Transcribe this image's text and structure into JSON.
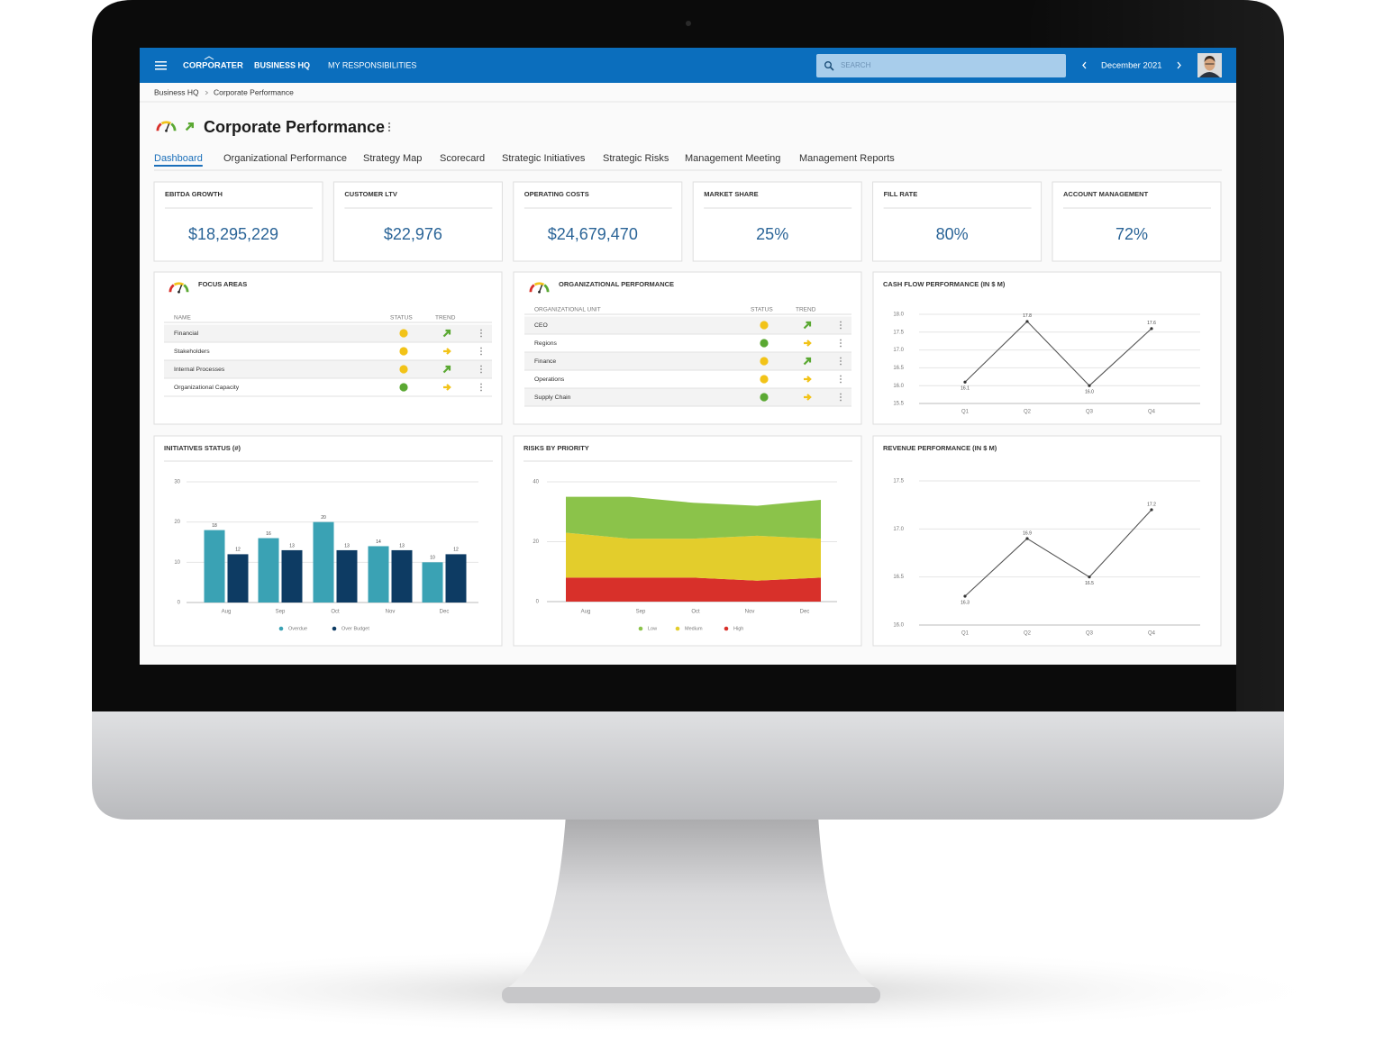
{
  "header": {
    "logo": "CORPORATER",
    "nav": [
      "BUSINESS HQ",
      "MY RESPONSIBILITIES"
    ],
    "search_placeholder": "SEARCH",
    "period": "December 2021"
  },
  "breadcrumb": [
    "Business HQ",
    "Corporate Performance"
  ],
  "page_title": "Corporate Performance",
  "tabs": {
    "items": [
      "Dashboard",
      "Organizational Performance",
      "Strategy Map",
      "Scorecard",
      "Strategic Initiatives",
      "Strategic Risks",
      "Management Meeting",
      "Management Reports"
    ],
    "active": 0
  },
  "kpis": [
    {
      "label": "EBITDA GROWTH",
      "value": "$18,295,229"
    },
    {
      "label": "CUSTOMER LTV",
      "value": "$22,976"
    },
    {
      "label": "OPERATING COSTS",
      "value": "$24,679,470"
    },
    {
      "label": "MARKET SHARE",
      "value": "25%"
    },
    {
      "label": "FILL RATE",
      "value": "80%"
    },
    {
      "label": "ACCOUNT MANAGEMENT",
      "value": "72%"
    }
  ],
  "focus_areas": {
    "title": "FOCUS AREAS",
    "columns": [
      "NAME",
      "STATUS",
      "TREND"
    ],
    "rows": [
      {
        "name": "Financial",
        "status": "#f2c318",
        "trend": "up"
      },
      {
        "name": "Stakeholders",
        "status": "#f2c318",
        "trend": "flat"
      },
      {
        "name": "Internal Processes",
        "status": "#f2c318",
        "trend": "up"
      },
      {
        "name": "Organizational Capacity",
        "status": "#5aa832",
        "trend": "flat"
      }
    ]
  },
  "org_performance": {
    "title": "ORGANIZATIONAL PERFORMANCE",
    "columns": [
      "ORGANIZATIONAL UNIT",
      "STATUS",
      "TREND"
    ],
    "rows": [
      {
        "name": "CEO",
        "status": "#f2c318",
        "trend": "up"
      },
      {
        "name": "Regions",
        "status": "#5aa832",
        "trend": "flat"
      },
      {
        "name": "Finance",
        "status": "#f2c318",
        "trend": "up"
      },
      {
        "name": "Operations",
        "status": "#f2c318",
        "trend": "flat"
      },
      {
        "name": "Supply Chain",
        "status": "#5aa832",
        "trend": "flat"
      }
    ]
  },
  "chart_data": [
    {
      "type": "line",
      "title": "CASH FLOW PERFORMANCE (IN $ M)",
      "categories": [
        "Q1",
        "Q2",
        "Q3",
        "Q4"
      ],
      "series": [
        {
          "name": null,
          "color": "#555555",
          "values": [
            16.1,
            17.8,
            16.0,
            17.6
          ],
          "value_labels": [
            "16.1",
            "17.8",
            "16.0",
            "17.6"
          ]
        }
      ],
      "ylim": [
        15.5,
        18.0
      ],
      "yticks": [
        15.5,
        {
          "value": 16,
          "label": "16.0"
        },
        16.5,
        {
          "value": 17,
          "label": "17.0"
        },
        17.5,
        {
          "value": 18,
          "label": "18.0"
        }
      ],
      "grid": true
    },
    {
      "type": "bar",
      "title": "INITIATIVES STATUS (#)",
      "categories": [
        "Aug",
        "Sep",
        "Oct",
        "Nov",
        "Dec"
      ],
      "series": [
        {
          "name": "Overdue",
          "color": "#3aa2b4",
          "values": [
            18,
            16,
            20,
            14,
            10
          ]
        },
        {
          "name": "Over Budget",
          "color": "#0d3b63",
          "values": [
            12,
            13,
            13,
            13,
            12
          ]
        }
      ],
      "ylim": [
        0,
        30
      ],
      "yticks": [
        0,
        10,
        20,
        30
      ],
      "grid": true,
      "legend": "bottom"
    },
    {
      "type": "area",
      "title": "RISKS BY PRIORITY",
      "categories": [
        "Aug",
        "Sep",
        "Oct",
        "Nov",
        "Dec"
      ],
      "series": [
        {
          "name": "Low",
          "color": "#8bc34a",
          "values": [
            12,
            14,
            12,
            10,
            13
          ]
        },
        {
          "name": "Medium",
          "color": "#e3cd2c",
          "values": [
            15,
            13,
            13,
            15,
            13
          ]
        },
        {
          "name": "High",
          "color": "#d8302a",
          "values": [
            8,
            8,
            8,
            7,
            8
          ]
        }
      ],
      "stacked": true,
      "ylim": [
        0,
        40
      ],
      "yticks": [
        0,
        20,
        40
      ],
      "grid": true,
      "legend": "bottom"
    },
    {
      "type": "line",
      "title": "REVENUE PERFORMANCE (IN $ M)",
      "categories": [
        "Q1",
        "Q2",
        "Q3",
        "Q4"
      ],
      "series": [
        {
          "name": null,
          "color": "#555555",
          "values": [
            16.3,
            16.9,
            16.5,
            17.2
          ],
          "value_labels": [
            "16.3",
            "16.9",
            "16.5",
            "17.2"
          ]
        }
      ],
      "ylim": [
        16.0,
        17.5
      ],
      "yticks": [
        {
          "value": 16,
          "label": "16.0"
        },
        16.5,
        {
          "value": 17,
          "label": "17.0"
        },
        17.5
      ],
      "grid": true
    }
  ]
}
